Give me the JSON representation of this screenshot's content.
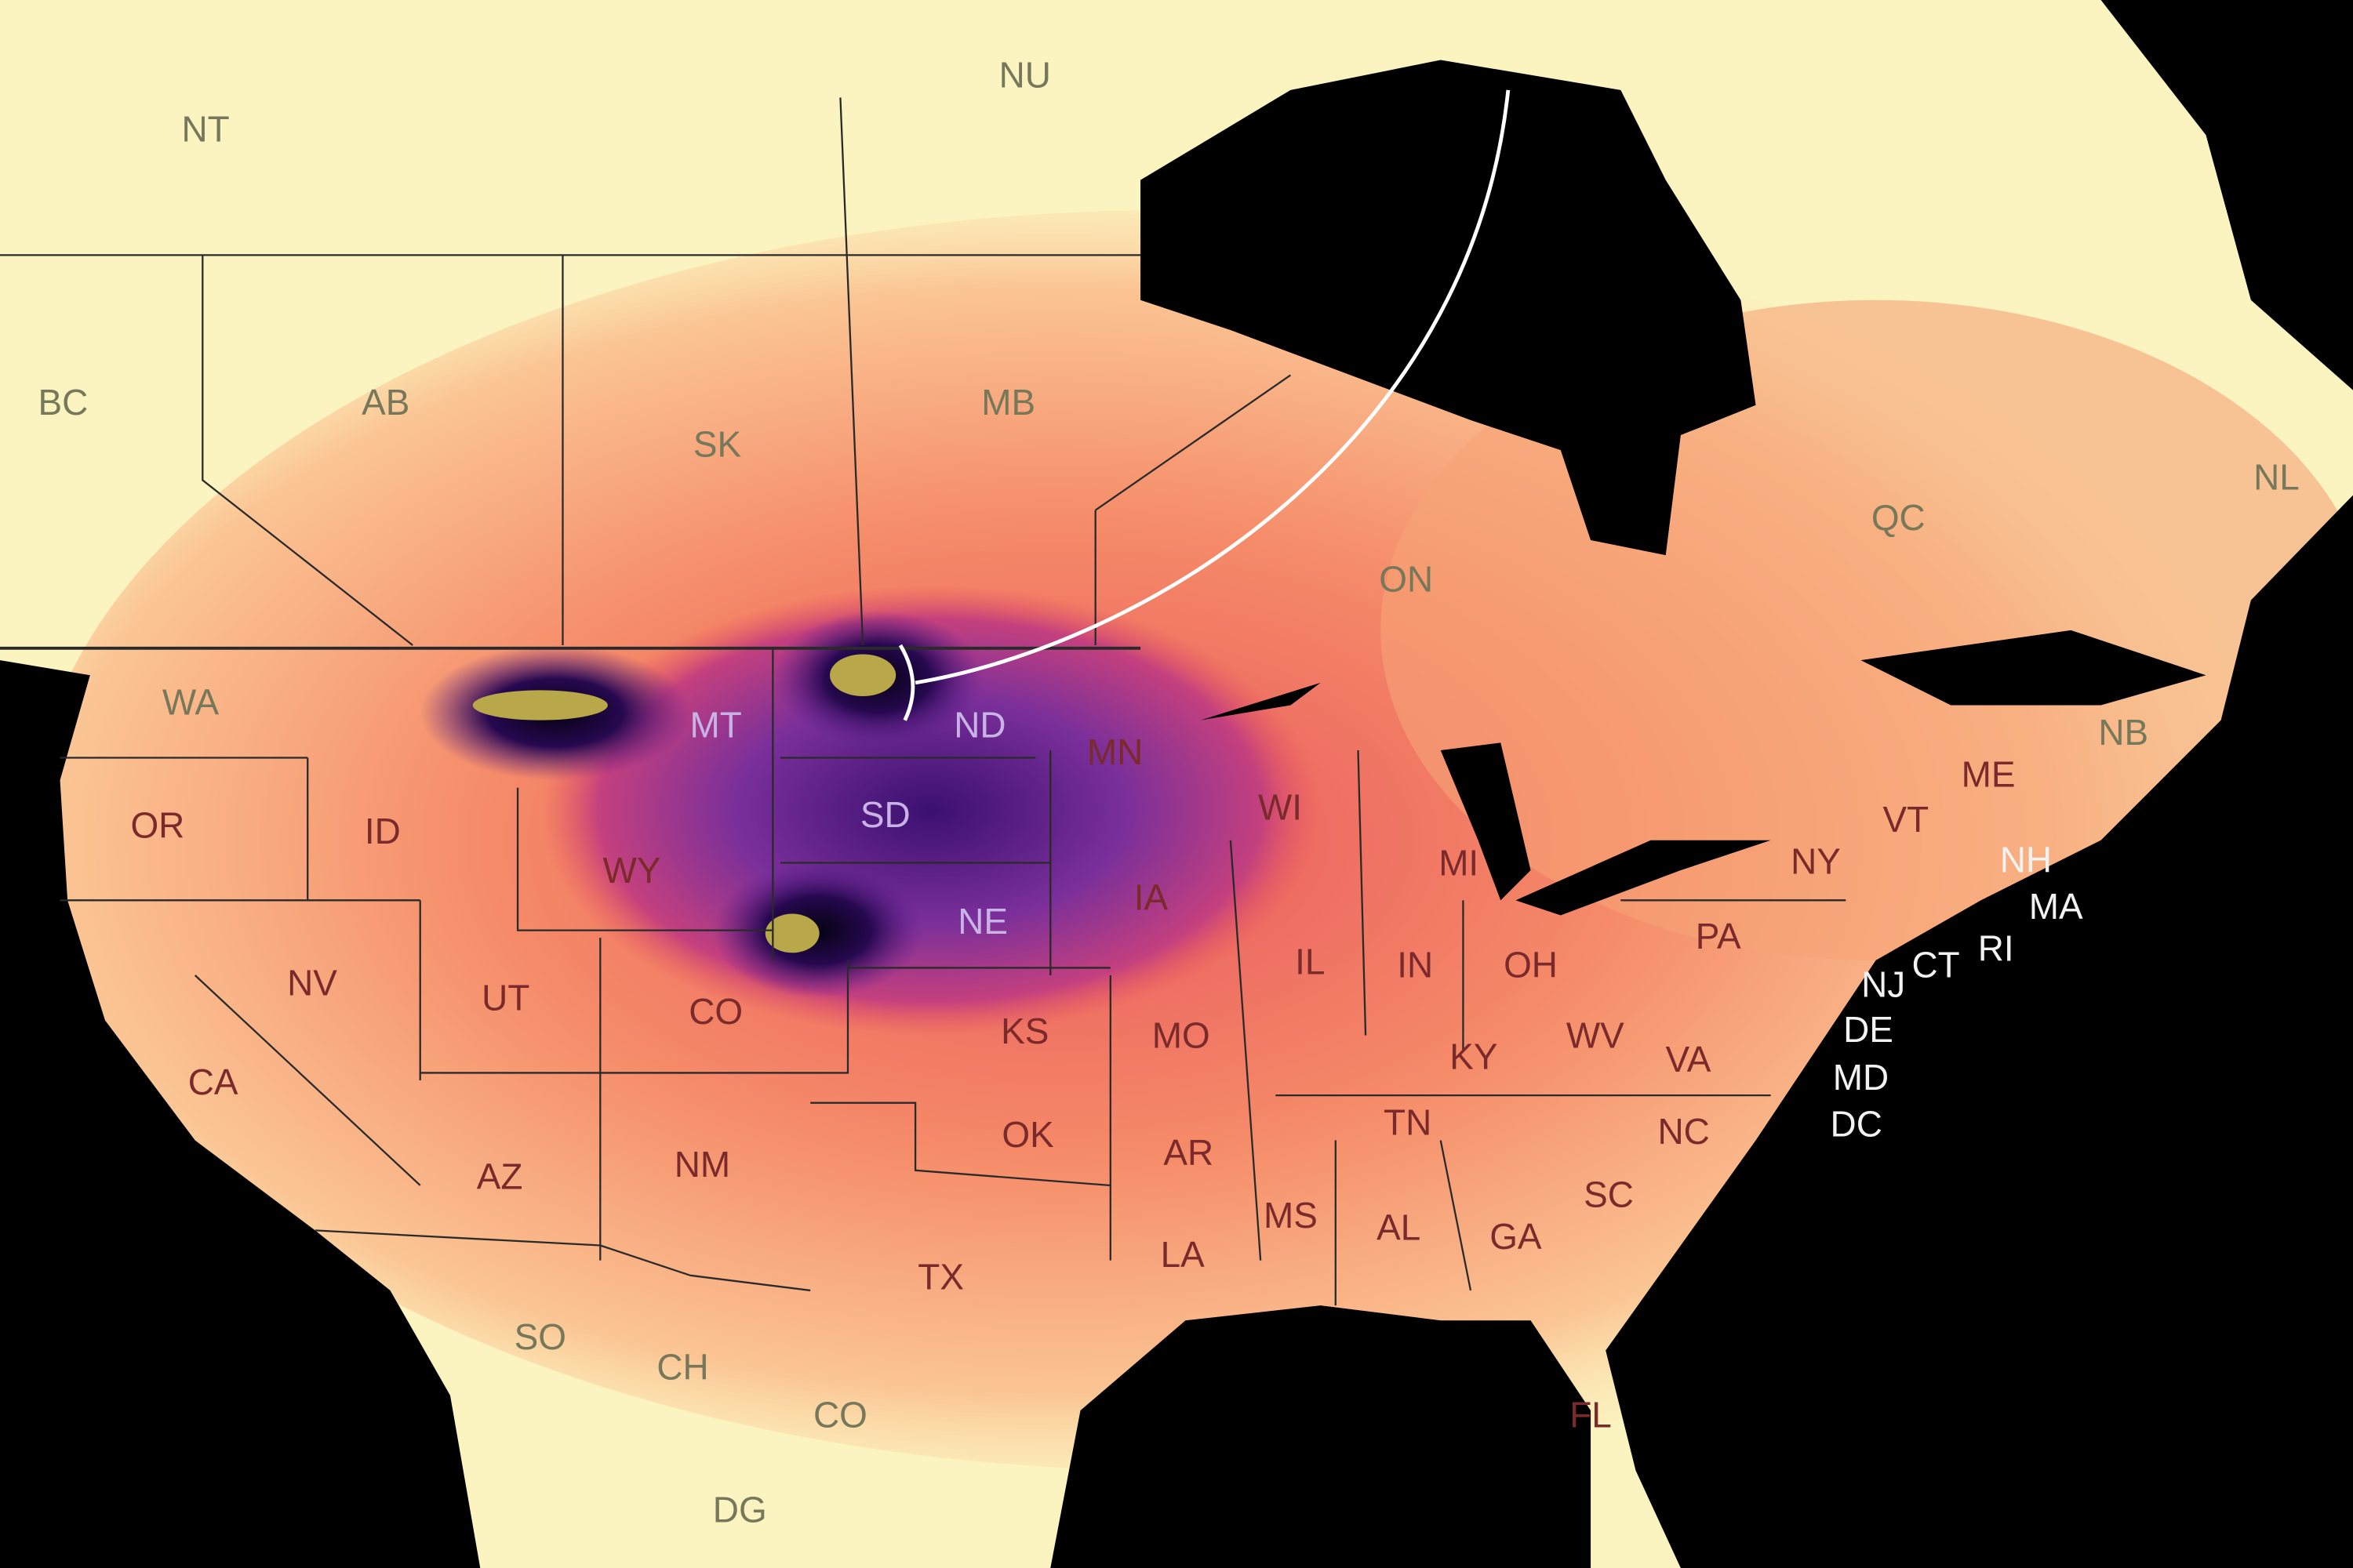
{
  "map": {
    "labels": [
      "NT",
      "NU",
      "BC",
      "AB",
      "SK",
      "MB",
      "ON",
      "QC",
      "NL",
      "NB",
      "WA",
      "MT",
      "ND",
      "MN",
      "OR",
      "ID",
      "WY",
      "SD",
      "WI",
      "MI",
      "NY",
      "VT",
      "ME",
      "NH",
      "MA",
      "RI",
      "CT",
      "NJ",
      "DE",
      "MD",
      "DC",
      "NV",
      "UT",
      "CO",
      "NE",
      "IA",
      "IL",
      "IN",
      "OH",
      "PA",
      "KS",
      "MO",
      "KY",
      "WV",
      "VA",
      "CA",
      "AZ",
      "NM",
      "OK",
      "AR",
      "TN",
      "NC",
      "SC",
      "MS",
      "AL",
      "GA",
      "LA",
      "TX",
      "FL",
      "SO",
      "CH",
      "CO",
      "DG"
    ]
  }
}
